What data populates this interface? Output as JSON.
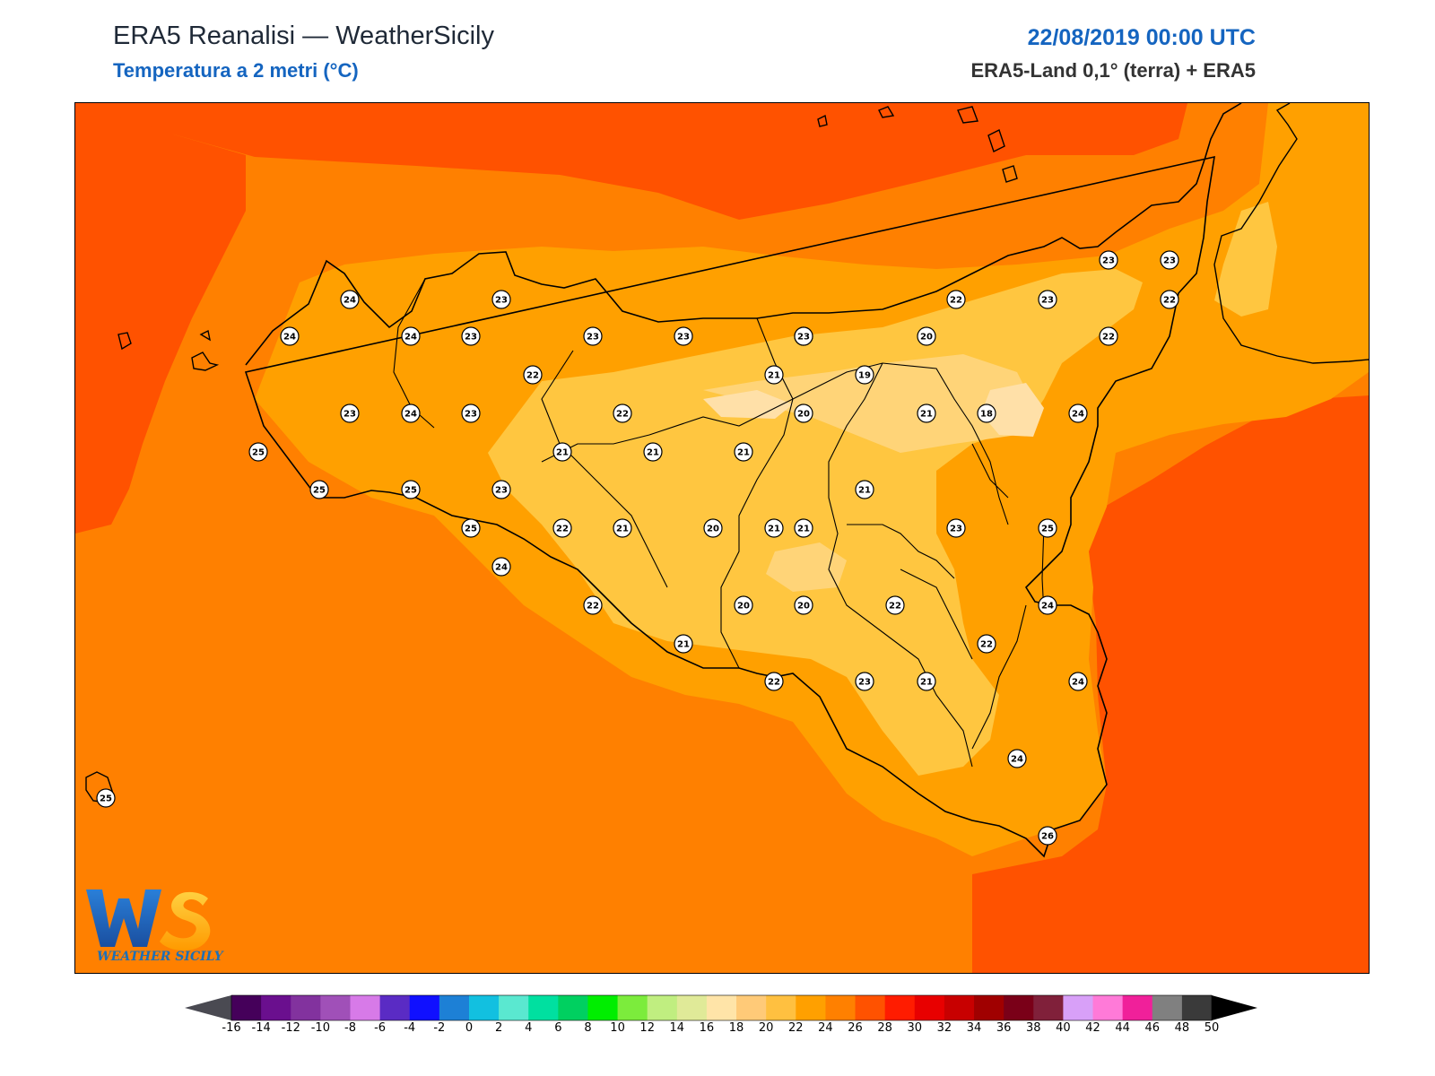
{
  "header": {
    "title": "ERA5 Reanalisi — WeatherSicily",
    "subtitle": "Temperatura a 2 metri (°C)",
    "datetime": "22/08/2019 00:00 UTC",
    "source": "ERA5-Land 0,1° (terra) + ERA5"
  },
  "logo": {
    "text": "WS",
    "caption": "WEATHER SICILY"
  },
  "colors": {
    "sea_26": "#ff8000",
    "sea_28": "#ff5200",
    "land_24": "#ffa000",
    "land_22": "#ffc640",
    "land_20": "#ffd478",
    "land_18": "#ffe0a8"
  },
  "colorbar": {
    "ticks": [
      "-16",
      "-14",
      "-12",
      "-10",
      "-8",
      "-6",
      "-4",
      "-2",
      "0",
      "2",
      "4",
      "6",
      "8",
      "10",
      "12",
      "14",
      "16",
      "18",
      "20",
      "22",
      "24",
      "26",
      "28",
      "30",
      "32",
      "34",
      "36",
      "38",
      "40",
      "42",
      "44",
      "46",
      "48",
      "50"
    ],
    "colors": [
      "#45005a",
      "#6a0f8e",
      "#82329e",
      "#a050b8",
      "#d77ae8",
      "#5a2bc4",
      "#1010ff",
      "#1d80d6",
      "#12c0e0",
      "#5ae8d0",
      "#00e0a0",
      "#00d060",
      "#00ee00",
      "#7cec3c",
      "#c0ee80",
      "#e0ea98",
      "#ffe4a8",
      "#ffca78",
      "#ffc040",
      "#ffa000",
      "#ff8000",
      "#ff5200",
      "#ff1c00",
      "#e80000",
      "#c80000",
      "#a00000",
      "#7a0018",
      "#80203a",
      "#d8a0f8",
      "#ff7ad8",
      "#f0209a",
      "#808080",
      "#3a3a3a"
    ],
    "under_color": "#4a4a52",
    "over_color": "#000000"
  },
  "stations": [
    {
      "v": "24"
    },
    {
      "v": "23"
    },
    {
      "v": "24"
    },
    {
      "v": "24"
    },
    {
      "v": "23"
    },
    {
      "v": "23"
    },
    {
      "v": "23"
    },
    {
      "v": "23"
    },
    {
      "v": "22"
    },
    {
      "v": "23"
    },
    {
      "v": "24"
    },
    {
      "v": "23"
    },
    {
      "v": "22"
    },
    {
      "v": "25"
    },
    {
      "v": "21"
    },
    {
      "v": "21"
    },
    {
      "v": "21"
    },
    {
      "v": "25"
    },
    {
      "v": "25"
    },
    {
      "v": "23"
    },
    {
      "v": "25"
    },
    {
      "v": "22"
    },
    {
      "v": "21"
    },
    {
      "v": "20"
    },
    {
      "v": "21"
    },
    {
      "v": "24"
    },
    {
      "v": "22"
    },
    {
      "v": "20"
    },
    {
      "v": "20"
    },
    {
      "v": "21"
    },
    {
      "v": "22"
    },
    {
      "v": "21"
    },
    {
      "v": "22"
    },
    {
      "v": "23"
    },
    {
      "v": "21"
    },
    {
      "v": "22"
    },
    {
      "v": "21"
    },
    {
      "v": "20"
    },
    {
      "v": "21"
    },
    {
      "v": "19"
    },
    {
      "v": "21"
    },
    {
      "v": "22"
    },
    {
      "v": "20"
    },
    {
      "v": "23"
    },
    {
      "v": "23"
    },
    {
      "v": "23"
    },
    {
      "v": "23"
    },
    {
      "v": "22"
    },
    {
      "v": "22"
    },
    {
      "v": "18"
    },
    {
      "v": "24"
    },
    {
      "v": "25"
    },
    {
      "v": "24"
    },
    {
      "v": "24"
    },
    {
      "v": "24"
    },
    {
      "v": "23"
    },
    {
      "v": "26"
    },
    {
      "v": "25"
    }
  ]
}
